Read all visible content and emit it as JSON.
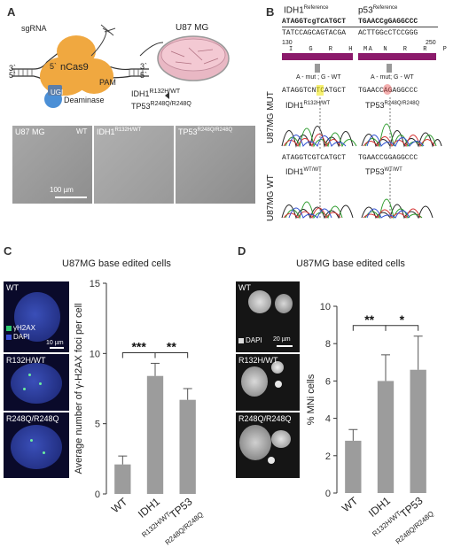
{
  "panel_a": {
    "label": "A",
    "diagram": {
      "sgrna": "sgRNA",
      "ncas9": "nCas9",
      "pam": "PAM",
      "ugi": "UGI",
      "deaminase": "Deaminase",
      "five_prime": "5`",
      "three_prime": "3`",
      "dish_label": "U87 MG",
      "idh1": "IDH1",
      "idh1_sup": "R132H/WT",
      "tp53": "TP53",
      "tp53_sup": "R248Q/R248Q"
    },
    "micrographs": [
      {
        "line": "U87 MG",
        "genotype": "WT"
      },
      {
        "line": "IDH1",
        "genotype": "R132H/WT"
      },
      {
        "line": "TP53",
        "genotype": "R248Q/R248Q"
      }
    ],
    "scale_bar": "100 µm"
  },
  "panel_b": {
    "label": "B",
    "idh1_ref": {
      "gene": "IDH1",
      "sup": "Reference",
      "seq1": "ATAGGTcgTCATGCT",
      "seq2": "TATCCAGCAGTACGA",
      "pos": "130",
      "aa": "I G R H A"
    },
    "p53_ref": {
      "gene": "p53",
      "sup": "Reference",
      "seq1": "TGAACCgGAGGCCC",
      "seq2": "ACTTGGcCTCCGGG",
      "pos": "250",
      "aa": "M N R R P"
    },
    "legend_idh1": "A - mut ; G - WT",
    "legend_p53": "A - mut; G - WT",
    "mut_row": {
      "side": "U87MG MUT",
      "idh1_seq": "ATAGGTCNTCATGCT",
      "idh1_label": "IDH1",
      "idh1_sup": "R132H/WT",
      "tp53_seq": "TGAACCAGAGGCCC",
      "tp53_label": "TP53",
      "tp53_sup": "R248Q/R248Q"
    },
    "wt_row": {
      "side": "U87MG WT",
      "idh1_seq": "ATAGGTCGTCATGCT",
      "idh1_label": "IDH1",
      "idh1_sup": "WT/WT",
      "tp53_seq": "TGAACCGGAGGCCC",
      "tp53_label": "TP53",
      "tp53_sup": "WT/WT"
    }
  },
  "panel_c": {
    "label": "C",
    "title": "U87MG base edited cells",
    "images": [
      {
        "label": "WT",
        "legend1": "γH2AX",
        "legend2": "DAPI",
        "scale": "10 µm"
      },
      {
        "label": "R132H/WT"
      },
      {
        "label": "R248Q/R248Q"
      }
    ]
  },
  "panel_d": {
    "label": "D",
    "title": "U87MG base edited cells",
    "images": [
      {
        "label": "WT",
        "legend": "DAPI",
        "scale": "20 µm"
      },
      {
        "label": "R132H/WT"
      },
      {
        "label": "R248Q/R248Q"
      }
    ]
  },
  "chart_data": [
    {
      "type": "bar",
      "categories": [
        "WT",
        "IDH1",
        "TP53"
      ],
      "category_subscripts": [
        "",
        "R132H/WT",
        "R248Q/R248Q"
      ],
      "values": [
        2.1,
        8.4,
        6.7
      ],
      "errors": [
        0.6,
        0.9,
        0.8
      ],
      "ylabel": "Average number of γ-H2AX foci per cell",
      "ylim": [
        0,
        15
      ],
      "yticks": [
        0,
        5,
        10,
        15
      ],
      "significance": [
        {
          "pair": [
            "WT",
            "IDH1"
          ],
          "label": "***"
        },
        {
          "pair": [
            "IDH1",
            "TP53"
          ],
          "label": "**"
        }
      ]
    },
    {
      "type": "bar",
      "categories": [
        "WT",
        "IDH1",
        "TP53"
      ],
      "category_subscripts": [
        "",
        "R132H/WT",
        "R248Q/R248Q"
      ],
      "values": [
        2.8,
        6.0,
        6.6
      ],
      "errors": [
        0.6,
        1.4,
        1.8
      ],
      "ylabel": "% MNi cells",
      "ylim": [
        0,
        10
      ],
      "yticks": [
        0,
        2,
        4,
        6,
        8,
        10
      ],
      "significance": [
        {
          "pair": [
            "WT",
            "IDH1"
          ],
          "label": "**"
        },
        {
          "pair": [
            "IDH1",
            "TP53"
          ],
          "label": "*"
        }
      ]
    }
  ]
}
